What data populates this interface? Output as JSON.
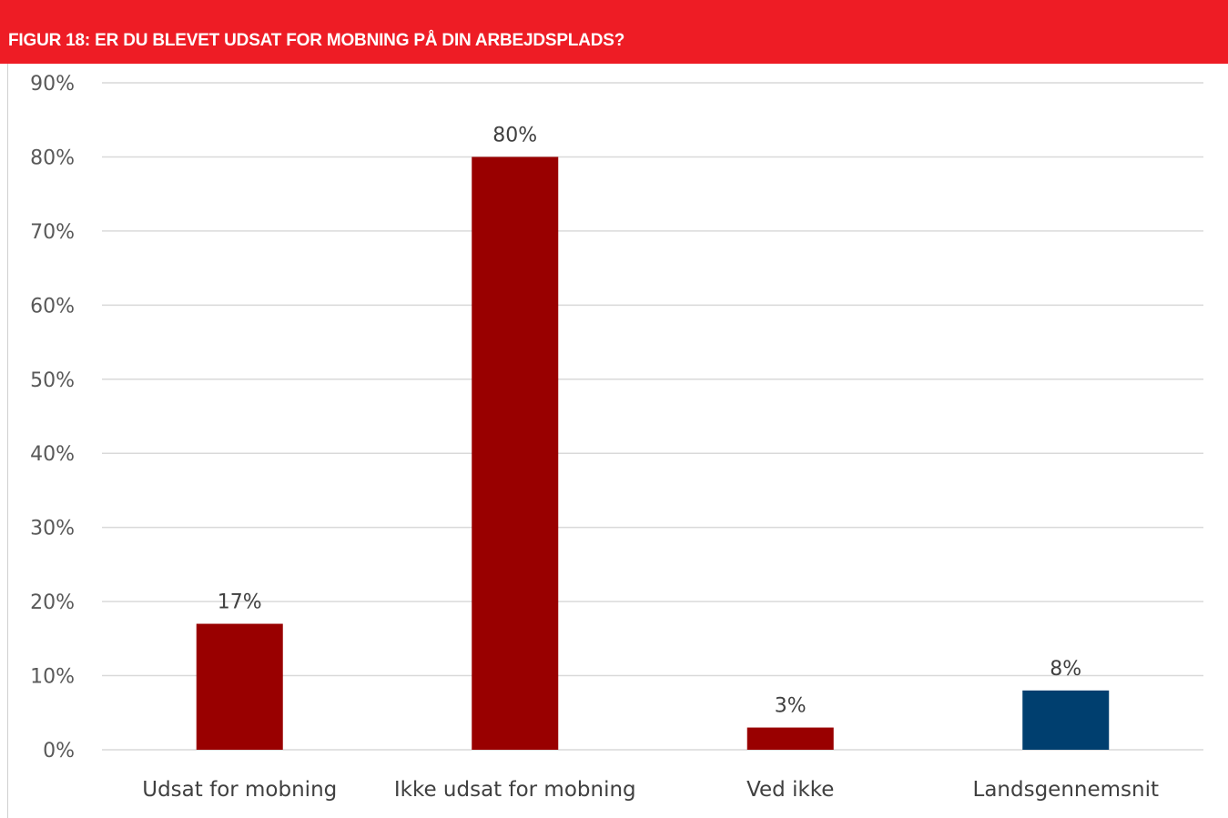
{
  "header": {
    "title": "FIGUR 18: ER DU BLEVET UDSAT FOR MOBNING PÅ DIN ARBEJDSPLADS?"
  },
  "colors": {
    "header_bg": "#ee1c25",
    "bar_primary": "#990000",
    "bar_average": "#003f6f",
    "gridline": "#d9d9d9"
  },
  "chart_data": {
    "type": "bar",
    "title": "FIGUR 18: ER DU BLEVET UDSAT FOR MOBNING PÅ DIN ARBEJDSPLADS?",
    "categories": [
      "Udsat for mobning",
      "Ikke udsat for mobning",
      "Ved ikke",
      "Landsgennemsnit"
    ],
    "values": [
      17,
      80,
      3,
      8
    ],
    "data_labels": [
      "17%",
      "80%",
      "3%",
      "8%"
    ],
    "bar_colors": [
      "#990000",
      "#990000",
      "#990000",
      "#003f6f"
    ],
    "ylim": [
      0,
      90
    ],
    "yticks": [
      0,
      10,
      20,
      30,
      40,
      50,
      60,
      70,
      80,
      90
    ],
    "ytick_labels": [
      "0%",
      "10%",
      "20%",
      "30%",
      "40%",
      "50%",
      "60%",
      "70%",
      "80%",
      "90%"
    ],
    "xlabel": "",
    "ylabel": "",
    "grid": true,
    "legend": "none"
  }
}
